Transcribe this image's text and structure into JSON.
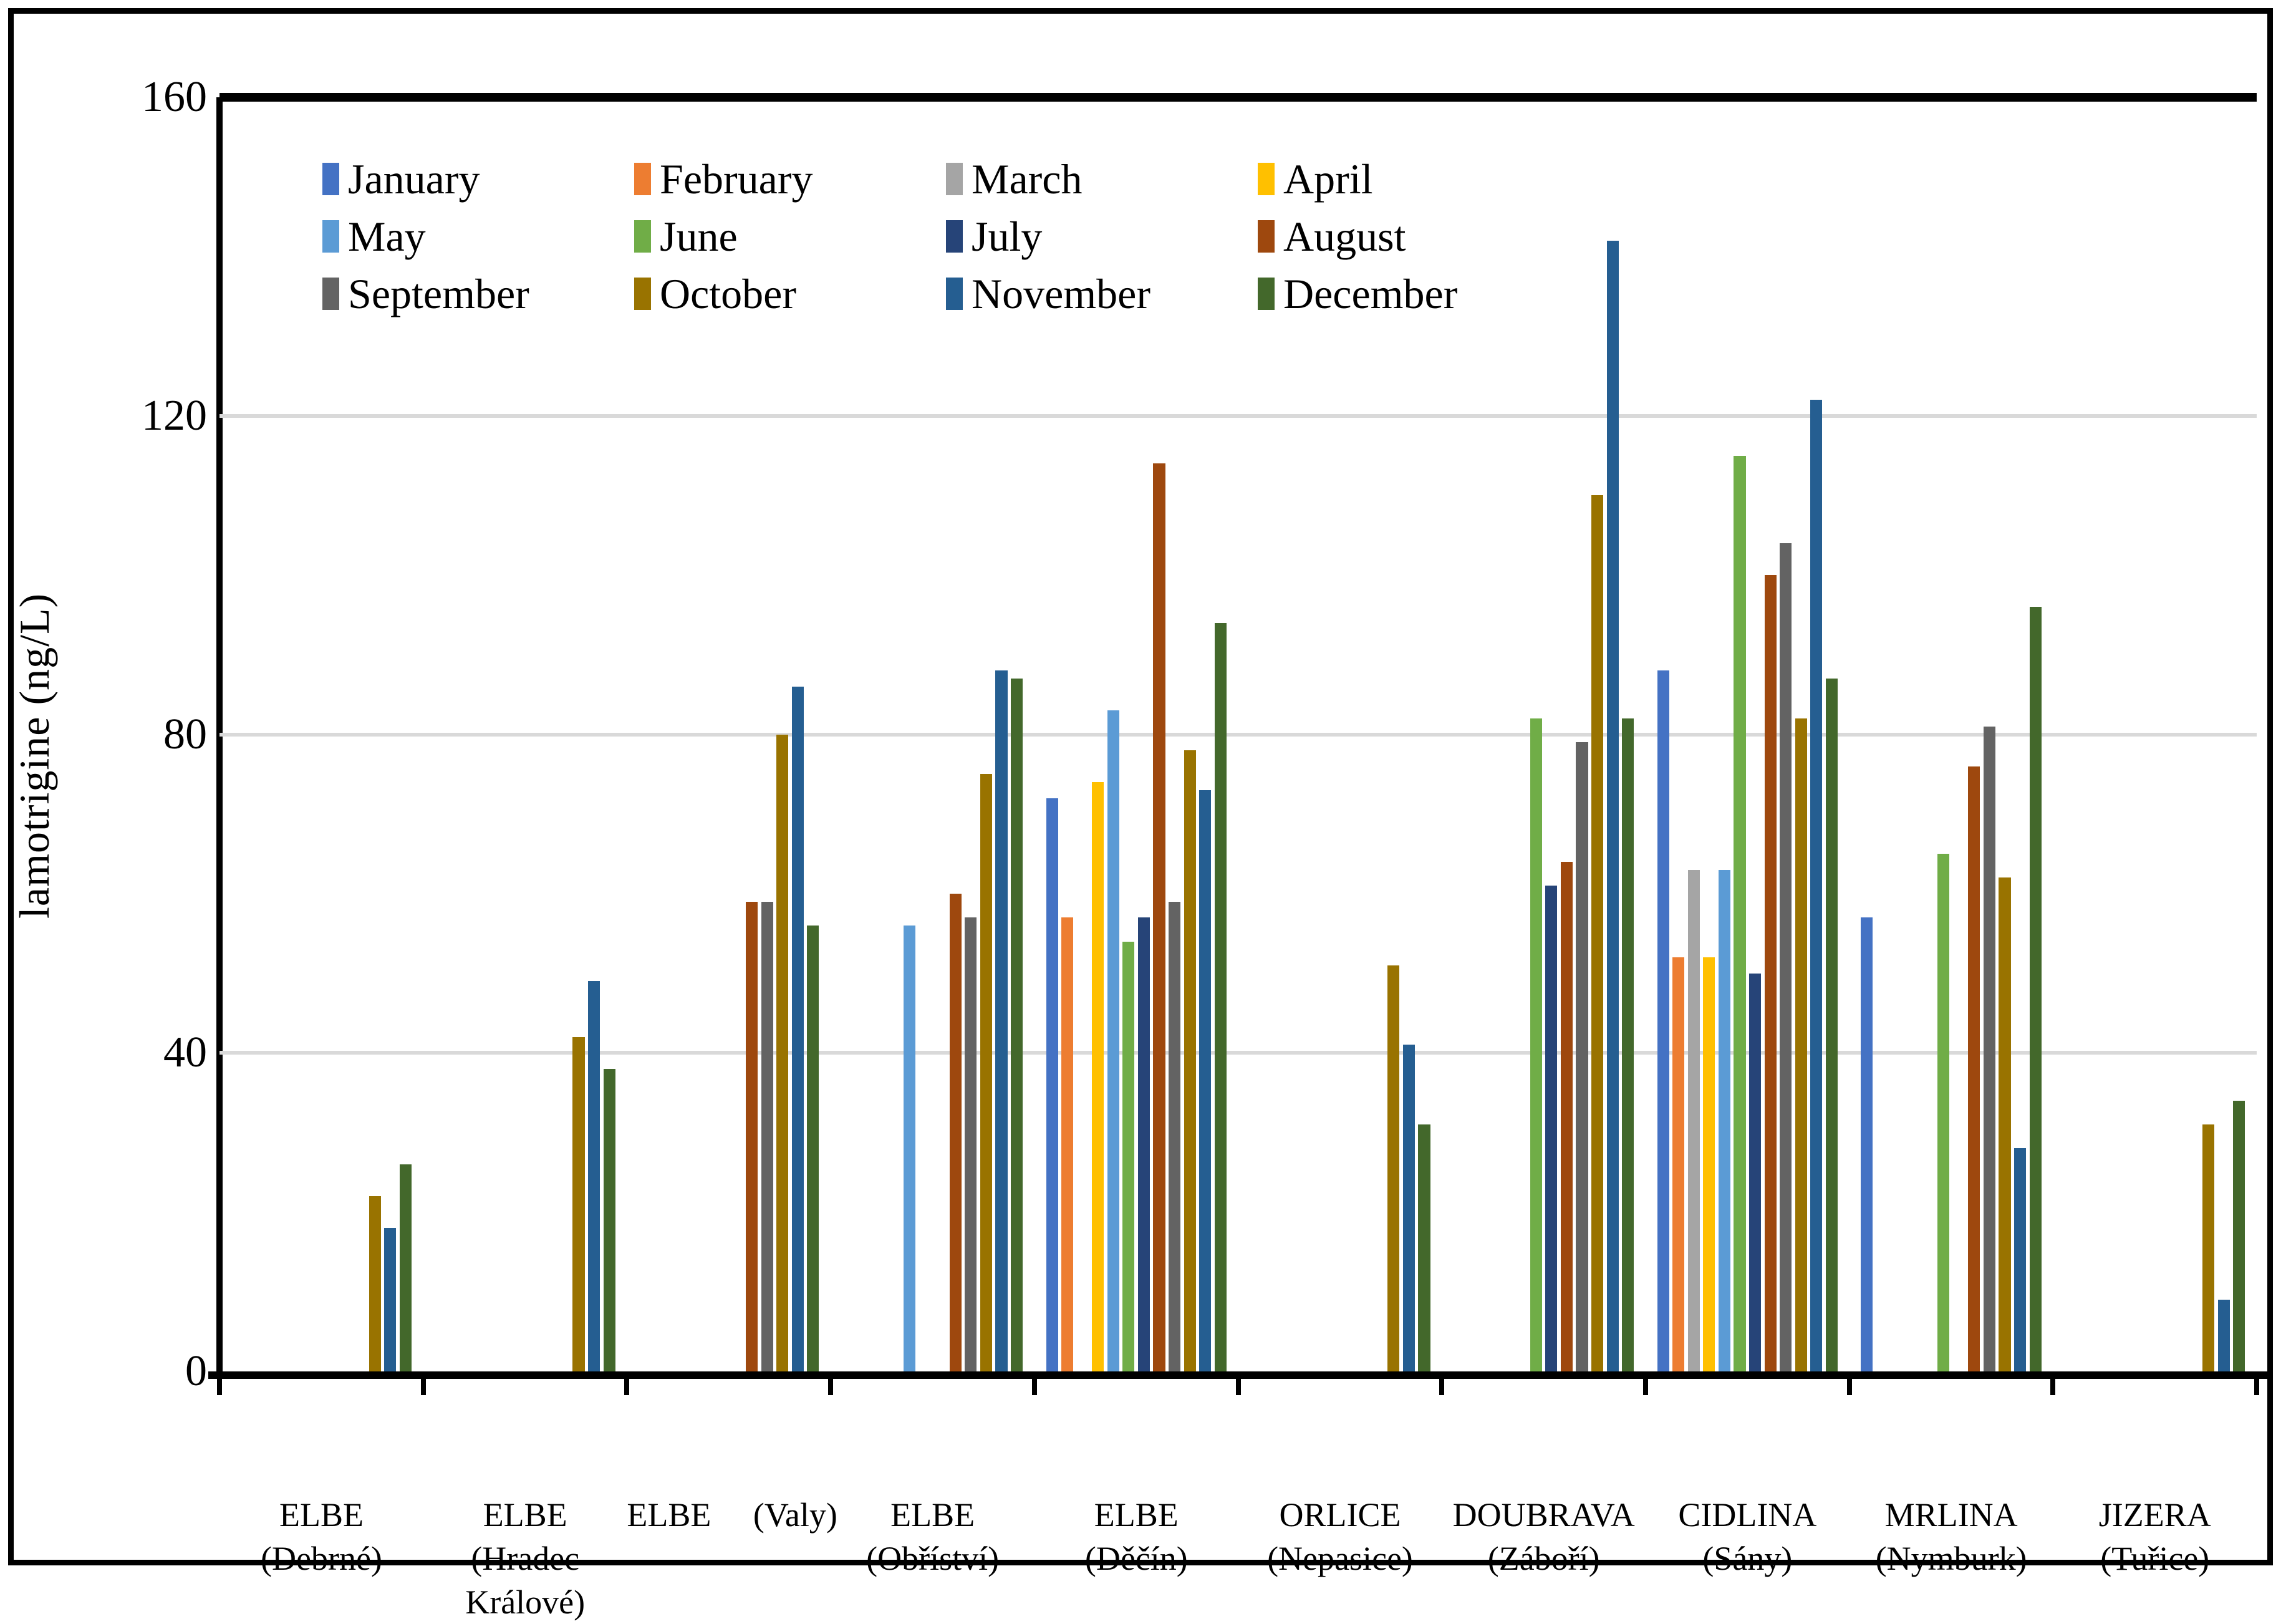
{
  "figure": {
    "background": "#ffffff",
    "frame_color": "#000000",
    "gridline_color": "#D9D9D9",
    "axis_color": "#000000"
  },
  "y_axis": {
    "title": "lamotrigine (ng/L)",
    "tick_labels": [
      "0",
      "40",
      "80",
      "120",
      "160"
    ],
    "min": 0,
    "max": 160
  },
  "chart_data": {
    "type": "bar",
    "title": "",
    "xlabel": "",
    "ylabel": "lamotrigine (ng/L)",
    "ylim": [
      0,
      160
    ],
    "yticks": [
      0,
      40,
      80,
      120,
      160
    ],
    "gridlines_at": [
      40,
      80,
      120
    ],
    "grid": "horizontal-light-gray",
    "legend_position": "inside-top-left",
    "legend_columns": 4,
    "categories": [
      "ELBE (Debrné)",
      "ELBE (Hradec Králové)",
      "ELBE (Valy)",
      "ELBE (Obříství)",
      "ELBE (Děčín)",
      "ORLICE (Nepasice)",
      "DOUBRAVA (Záboří)",
      "CIDLINA (Sány)",
      "MRLINA (Nymburk)",
      "JIZERA (Tuřice)"
    ],
    "category_label_lines": [
      [
        "ELBE",
        "(Debrné)"
      ],
      [
        "ELBE",
        "(Hradec",
        "Králové)"
      ],
      [
        "ELBE     (Valy)"
      ],
      [
        "ELBE",
        "(Obříství)"
      ],
      [
        "ELBE",
        "(Děčín)"
      ],
      [
        "ORLICE",
        "(Nepasice)"
      ],
      [
        "DOUBRAVA",
        "(Záboří)"
      ],
      [
        "CIDLINA",
        "(Sány)"
      ],
      [
        "MRLINA",
        "(Nymburk)"
      ],
      [
        "JIZERA",
        "(Tuřice)"
      ]
    ],
    "series": [
      {
        "name": "January",
        "color": "#4472C4",
        "values": [
          null,
          null,
          null,
          null,
          72,
          null,
          null,
          88,
          57,
          null
        ]
      },
      {
        "name": "February",
        "color": "#ED7D31",
        "values": [
          null,
          null,
          null,
          null,
          57,
          null,
          null,
          52,
          null,
          null
        ]
      },
      {
        "name": "March",
        "color": "#A5A5A5",
        "values": [
          null,
          null,
          null,
          null,
          null,
          null,
          null,
          63,
          null,
          null
        ]
      },
      {
        "name": "April",
        "color": "#FFC000",
        "values": [
          null,
          null,
          null,
          null,
          74,
          null,
          null,
          52,
          null,
          null
        ]
      },
      {
        "name": "May",
        "color": "#5B9BD5",
        "values": [
          null,
          null,
          null,
          56,
          83,
          null,
          null,
          63,
          null,
          null
        ]
      },
      {
        "name": "June",
        "color": "#70AD47",
        "values": [
          null,
          null,
          null,
          null,
          54,
          null,
          82,
          115,
          65,
          null
        ]
      },
      {
        "name": "July",
        "color": "#264478",
        "values": [
          null,
          null,
          null,
          null,
          57,
          null,
          61,
          50,
          null,
          null
        ]
      },
      {
        "name": "August",
        "color": "#9E480E",
        "values": [
          null,
          null,
          59,
          60,
          114,
          null,
          64,
          100,
          76,
          null
        ]
      },
      {
        "name": "September",
        "color": "#636363",
        "values": [
          null,
          null,
          59,
          57,
          59,
          null,
          79,
          104,
          81,
          null
        ]
      },
      {
        "name": "October",
        "color": "#997300",
        "values": [
          22,
          42,
          80,
          75,
          78,
          51,
          110,
          82,
          62,
          31
        ]
      },
      {
        "name": "November",
        "color": "#255E91",
        "values": [
          18,
          49,
          86,
          88,
          73,
          41,
          142,
          122,
          28,
          9
        ]
      },
      {
        "name": "December",
        "color": "#43682B",
        "values": [
          26,
          38,
          56,
          87,
          94,
          31,
          82,
          87,
          96,
          34
        ]
      }
    ]
  }
}
